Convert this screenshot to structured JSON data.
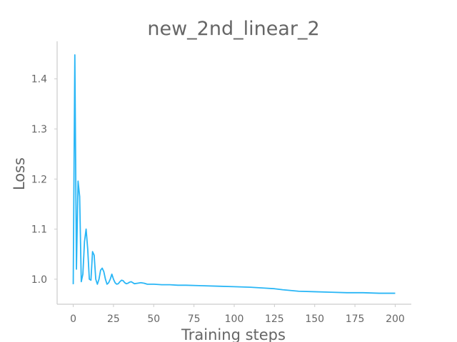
{
  "chart_data": {
    "type": "line",
    "title": "new_2nd_linear_2",
    "xlabel": "Training steps",
    "ylabel": "Loss",
    "xlim": [
      -10,
      210
    ],
    "ylim": [
      0.95,
      1.475
    ],
    "x_ticks": [
      0,
      25,
      50,
      75,
      100,
      125,
      150,
      175,
      200
    ],
    "y_ticks": [
      1.0,
      1.1,
      1.2,
      1.3,
      1.4
    ],
    "grid": false,
    "series": [
      {
        "color": "#29b6f6",
        "x": [
          0,
          1,
          2,
          3,
          4,
          5,
          6,
          7,
          8,
          9,
          10,
          11,
          12,
          13,
          14,
          15,
          16,
          17,
          18,
          19,
          20,
          21,
          22,
          23,
          24,
          25,
          26,
          27,
          28,
          29,
          30,
          31,
          32,
          33,
          34,
          35,
          36,
          37,
          38,
          40,
          42,
          44,
          46,
          48,
          50,
          55,
          60,
          65,
          70,
          80,
          90,
          100,
          110,
          120,
          125,
          130,
          140,
          150,
          160,
          170,
          180,
          190,
          200
        ],
        "y": [
          0.99,
          1.448,
          1.02,
          1.196,
          1.165,
          0.995,
          1.01,
          1.075,
          1.1,
          1.06,
          1.0,
          0.998,
          1.055,
          1.048,
          1.0,
          0.99,
          1.0,
          1.018,
          1.022,
          1.015,
          1.0,
          0.99,
          0.993,
          1.0,
          1.01,
          1.0,
          0.993,
          0.99,
          0.991,
          0.995,
          0.998,
          0.997,
          0.993,
          0.991,
          0.992,
          0.994,
          0.995,
          0.993,
          0.991,
          0.992,
          0.993,
          0.992,
          0.99,
          0.99,
          0.99,
          0.989,
          0.989,
          0.988,
          0.988,
          0.987,
          0.986,
          0.985,
          0.984,
          0.982,
          0.981,
          0.979,
          0.976,
          0.975,
          0.974,
          0.973,
          0.973,
          0.972,
          0.972
        ]
      }
    ]
  }
}
